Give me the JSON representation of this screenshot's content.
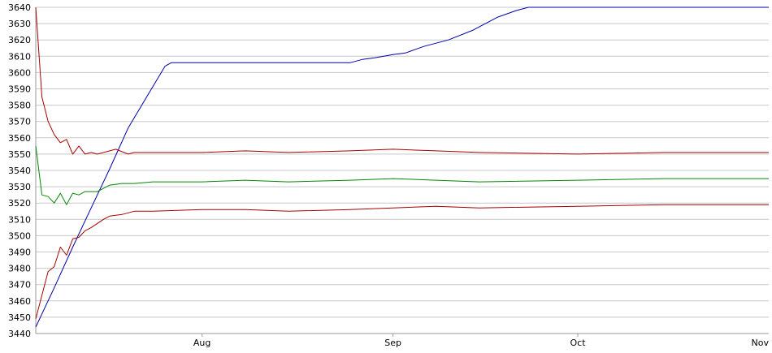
{
  "chart_data": {
    "type": "line",
    "grid": true,
    "x_start": "2023-07-05",
    "ylim": [
      3440,
      3640
    ],
    "yticks": [
      3440,
      3450,
      3460,
      3470,
      3480,
      3490,
      3500,
      3510,
      3520,
      3530,
      3540,
      3550,
      3560,
      3570,
      3580,
      3590,
      3600,
      3610,
      3620,
      3630,
      3640
    ],
    "xticks": [
      {
        "label": "Aug",
        "date": "2023-08-01"
      },
      {
        "label": "Sep",
        "date": "2023-09-01"
      },
      {
        "label": "Oct",
        "date": "2023-10-01"
      },
      {
        "label": "Nov",
        "date": "2023-11-01"
      }
    ],
    "series": [
      {
        "color": "#0000aa",
        "points": [
          [
            "2023-07-05",
            3444
          ],
          [
            "2023-07-08",
            3468
          ],
          [
            "2023-07-11",
            3493
          ],
          [
            "2023-07-14",
            3517
          ],
          [
            "2023-07-17",
            3541
          ],
          [
            "2023-07-20",
            3566
          ],
          [
            "2023-07-23",
            3585
          ],
          [
            "2023-07-26",
            3604
          ],
          [
            "2023-07-27",
            3606
          ],
          [
            "2023-08-01",
            3606
          ],
          [
            "2023-08-10",
            3606
          ],
          [
            "2023-08-20",
            3606
          ],
          [
            "2023-08-25",
            3606
          ],
          [
            "2023-08-27",
            3608
          ],
          [
            "2023-08-29",
            3609
          ],
          [
            "2023-09-01",
            3611
          ],
          [
            "2023-09-03",
            3612
          ],
          [
            "2023-09-06",
            3616
          ],
          [
            "2023-09-10",
            3620
          ],
          [
            "2023-09-14",
            3626
          ],
          [
            "2023-09-18",
            3634
          ],
          [
            "2023-09-21",
            3638
          ],
          [
            "2023-09-23",
            3640
          ],
          [
            "2023-10-15",
            3640
          ],
          [
            "2023-11-01",
            3640
          ]
        ]
      },
      {
        "color": "#aa0000",
        "points": [
          [
            "2023-07-05",
            3640
          ],
          [
            "2023-07-06",
            3585
          ],
          [
            "2023-07-07",
            3570
          ],
          [
            "2023-07-08",
            3562
          ],
          [
            "2023-07-09",
            3557
          ],
          [
            "2023-07-10",
            3559
          ],
          [
            "2023-07-11",
            3550
          ],
          [
            "2023-07-12",
            3555
          ],
          [
            "2023-07-13",
            3550
          ],
          [
            "2023-07-14",
            3551
          ],
          [
            "2023-07-15",
            3550
          ],
          [
            "2023-07-17",
            3552
          ],
          [
            "2023-07-18",
            3553
          ],
          [
            "2023-07-20",
            3550
          ],
          [
            "2023-07-21",
            3551
          ],
          [
            "2023-08-01",
            3551
          ],
          [
            "2023-08-08",
            3552
          ],
          [
            "2023-08-15",
            3551
          ],
          [
            "2023-08-25",
            3552
          ],
          [
            "2023-09-01",
            3553
          ],
          [
            "2023-09-08",
            3552
          ],
          [
            "2023-09-15",
            3551
          ],
          [
            "2023-10-01",
            3550
          ],
          [
            "2023-10-15",
            3551
          ],
          [
            "2023-11-01",
            3551
          ]
        ]
      },
      {
        "color": "#008800",
        "points": [
          [
            "2023-07-05",
            3555
          ],
          [
            "2023-07-06",
            3525
          ],
          [
            "2023-07-07",
            3524
          ],
          [
            "2023-07-08",
            3520
          ],
          [
            "2023-07-09",
            3526
          ],
          [
            "2023-07-10",
            3519
          ],
          [
            "2023-07-11",
            3526
          ],
          [
            "2023-07-12",
            3525
          ],
          [
            "2023-07-13",
            3527
          ],
          [
            "2023-07-15",
            3527
          ],
          [
            "2023-07-17",
            3531
          ],
          [
            "2023-07-19",
            3532
          ],
          [
            "2023-07-21",
            3532
          ],
          [
            "2023-07-24",
            3533
          ],
          [
            "2023-08-01",
            3533
          ],
          [
            "2023-08-08",
            3534
          ],
          [
            "2023-08-15",
            3533
          ],
          [
            "2023-08-25",
            3534
          ],
          [
            "2023-09-01",
            3535
          ],
          [
            "2023-09-08",
            3534
          ],
          [
            "2023-09-15",
            3533
          ],
          [
            "2023-10-01",
            3534
          ],
          [
            "2023-10-15",
            3535
          ],
          [
            "2023-11-01",
            3535
          ]
        ]
      },
      {
        "color": "#aa0000",
        "points": [
          [
            "2023-07-05",
            3449
          ],
          [
            "2023-07-07",
            3478
          ],
          [
            "2023-07-08",
            3481
          ],
          [
            "2023-07-09",
            3493
          ],
          [
            "2023-07-10",
            3488
          ],
          [
            "2023-07-11",
            3498
          ],
          [
            "2023-07-12",
            3499
          ],
          [
            "2023-07-13",
            3503
          ],
          [
            "2023-07-14",
            3505
          ],
          [
            "2023-07-16",
            3510
          ],
          [
            "2023-07-17",
            3512
          ],
          [
            "2023-07-19",
            3513
          ],
          [
            "2023-07-21",
            3515
          ],
          [
            "2023-07-24",
            3515
          ],
          [
            "2023-08-01",
            3516
          ],
          [
            "2023-08-08",
            3516
          ],
          [
            "2023-08-15",
            3515
          ],
          [
            "2023-08-25",
            3516
          ],
          [
            "2023-09-01",
            3517
          ],
          [
            "2023-09-08",
            3518
          ],
          [
            "2023-09-15",
            3517
          ],
          [
            "2023-10-01",
            3518
          ],
          [
            "2023-10-15",
            3519
          ],
          [
            "2023-11-01",
            3519
          ]
        ]
      }
    ]
  }
}
